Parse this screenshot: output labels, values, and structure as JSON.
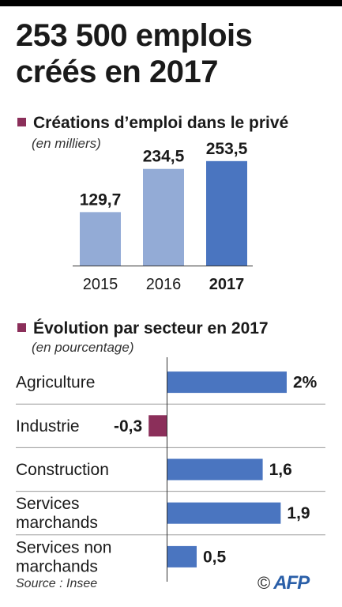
{
  "title": "253 500 emplois créés en 2017",
  "colors": {
    "accent": "#8b2f5a",
    "bar_light": "#93abd6",
    "bar_dark": "#4a75c0",
    "negative": "#8b2f5a"
  },
  "chart_data": [
    {
      "type": "bar",
      "title": "Créations d’emploi dans le privé",
      "subtitle": "(en milliers)",
      "categories": [
        "2015",
        "2016",
        "2017"
      ],
      "values": [
        129.7,
        234.5,
        253.5
      ],
      "value_labels": [
        "129,7",
        "234,5",
        "253,5"
      ],
      "highlight": "2017",
      "ylim": [
        0,
        280
      ],
      "grid": false
    },
    {
      "type": "bar",
      "orientation": "horizontal",
      "title": "Évolution par secteur en 2017",
      "subtitle": "(en pourcentage)",
      "categories": [
        [
          "Agriculture"
        ],
        [
          "Industrie"
        ],
        [
          "Construction"
        ],
        [
          "Services",
          "marchands"
        ],
        [
          "Services non",
          "marchands"
        ]
      ],
      "values": [
        2,
        -0.3,
        1.6,
        1.9,
        0.5
      ],
      "value_labels": [
        "2%",
        "-0,3",
        "1,6",
        "1,9",
        "0,5"
      ],
      "xlim": [
        -0.3,
        2
      ],
      "grid": false
    }
  ],
  "footer": {
    "source": "Source : Insee",
    "copyright": "©",
    "agency": "AFP"
  }
}
